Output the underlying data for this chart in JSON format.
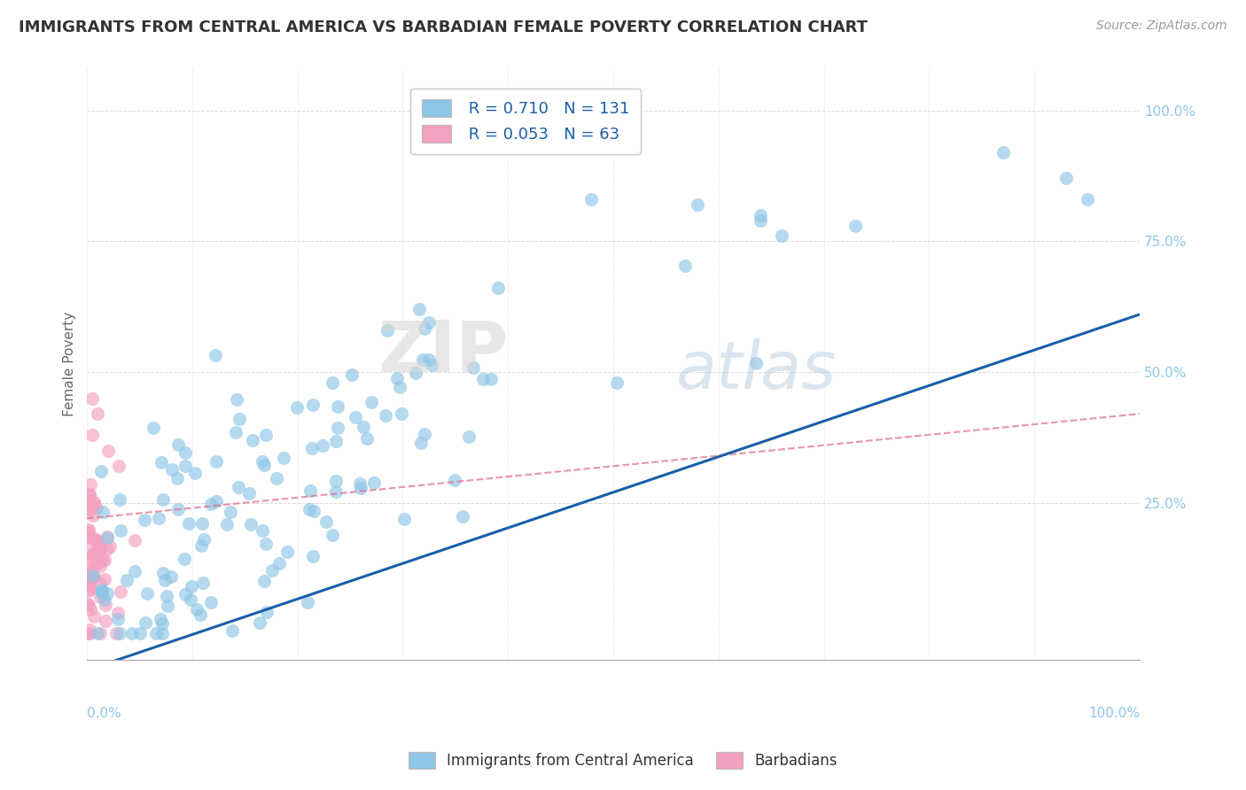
{
  "title": "IMMIGRANTS FROM CENTRAL AMERICA VS BARBADIAN FEMALE POVERTY CORRELATION CHART",
  "source": "Source: ZipAtlas.com",
  "xlabel": "",
  "ylabel": "Female Poverty",
  "legend_label_1": "Immigrants from Central America",
  "legend_label_2": "Barbadians",
  "R1": 0.71,
  "N1": 131,
  "R2": 0.053,
  "N2": 63,
  "color1": "#8ec6e6",
  "color2": "#f4a0c0",
  "trendline1_color": "#1a5fa8",
  "trendline2_color": "#e07090",
  "watermark_top": "ZIP",
  "watermark_bottom": "atlas",
  "xmin": 0.0,
  "xmax": 1.0,
  "ymin": -0.05,
  "ymax": 1.08,
  "background": "#ffffff",
  "grid_color": "#d0d0d0",
  "ytick_labels": [
    "25.0%",
    "50.0%",
    "75.0%",
    "100.0%"
  ],
  "ytick_positions": [
    0.25,
    0.5,
    0.75,
    1.0
  ],
  "xtick_left_label": "0.0%",
  "xtick_right_label": "100.0%",
  "title_fontsize": 13,
  "source_fontsize": 10,
  "tick_fontsize": 11
}
